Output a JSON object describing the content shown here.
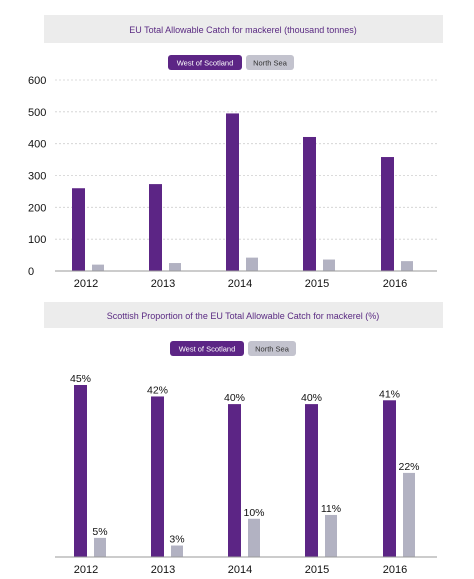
{
  "colors": {
    "west_of_scotland": "#5c2585",
    "north_sea": "#b2b2c2",
    "legend_north_sea_bg": "#c3c3ce",
    "title_band": "#ececec",
    "title_text": "#5a2a82"
  },
  "chart_data": [
    {
      "type": "bar",
      "title": "EU Total Allowable Catch for mackerel (thousand tonnes)",
      "categories": [
        "2012",
        "2013",
        "2014",
        "2015",
        "2016"
      ],
      "series": [
        {
          "name": "West of Scotland",
          "values": [
            260,
            273,
            495,
            421,
            358
          ]
        },
        {
          "name": "North Sea",
          "values": [
            20,
            25,
            42,
            36,
            31
          ]
        }
      ],
      "yticks": [
        "0",
        "100",
        "200",
        "300",
        "400",
        "500",
        "600"
      ],
      "ylim": [
        0,
        600
      ],
      "grid": true,
      "legend": "top-center"
    },
    {
      "type": "bar",
      "title": "Scottish Proportion of the EU Total Allowable Catch for mackerel (%)",
      "categories": [
        "2012",
        "2013",
        "2014",
        "2015",
        "2016"
      ],
      "series": [
        {
          "name": "West of Scotland",
          "values": [
            45,
            42,
            40,
            40,
            41
          ],
          "labels": [
            "45%",
            "42%",
            "40%",
            "40%",
            "41%"
          ]
        },
        {
          "name": "North Sea",
          "values": [
            5,
            3,
            10,
            11,
            22
          ],
          "labels": [
            "5%",
            "3%",
            "10%",
            "11%",
            "22%"
          ]
        }
      ],
      "ylim": [
        0,
        45
      ],
      "grid": false,
      "legend": "top-center"
    }
  ]
}
